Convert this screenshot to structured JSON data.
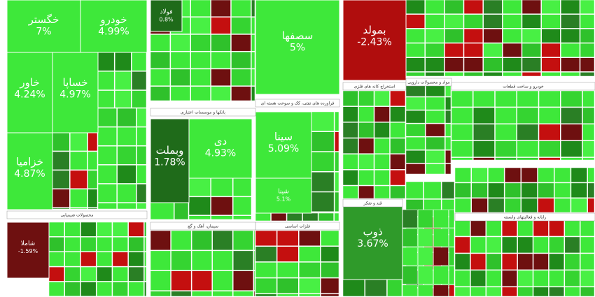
{
  "chart_data": {
    "type": "treemap",
    "categories": [
      "خگستر",
      "خودرو",
      "خاور",
      "خساپا",
      "خزامیا",
      "وبملت",
      "دی",
      "سصفها",
      "سینا",
      "بمولد",
      "شاملا",
      "ذوب",
      "فولاد",
      "شپنا"
    ],
    "values": [
      7,
      4.99,
      4.24,
      4.97,
      4.87,
      1.78,
      4.93,
      5,
      5.09,
      -2.43,
      -1.59,
      3.67,
      0.8,
      5.1
    ],
    "value_labels": [
      "7%",
      "4.99%",
      "4.24%",
      "4.97%",
      "4.87%",
      "1.78%",
      "4.93%",
      "5%",
      "5.09%",
      "-2.43%",
      "-1.59%",
      "3.67%",
      "0.8%",
      "5.1%"
    ],
    "colors": [
      "#3ee83a",
      "#3ee83a",
      "#3ee83a",
      "#3ee83a",
      "#3ee83a",
      "#1f6b1a",
      "#3ee83a",
      "#3ee83a",
      "#3ee83a",
      "#b00d0d",
      "#6e1010",
      "#2f9a2a",
      "#1f6b1a",
      "#3ee83a"
    ],
    "sectors": [
      "محصولات شیمیایی",
      "بانکها و موسسات اعتباری",
      "فراورده های نفتی، کک و سوخت هسته ای",
      "فلزات اساسی",
      "استخراج کانه های فلزی",
      "مواد و محصولات دارویی",
      "سیمان، آهک و گچ",
      "خودرو و ساخت قطعات",
      "قند و شکر",
      "رایانه و فعالیتهای وابسته"
    ]
  }
}
